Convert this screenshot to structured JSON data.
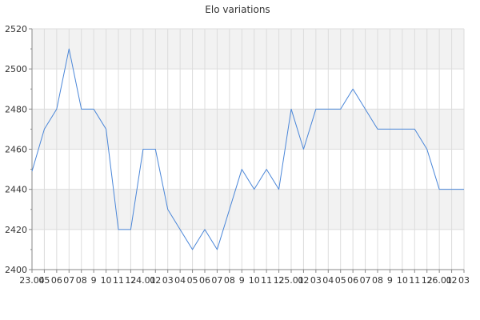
{
  "chart_data": {
    "type": "line",
    "title": "Elo variations",
    "xlabel": "",
    "ylabel": "",
    "ylim": [
      2400,
      2520
    ],
    "yticks": [
      2400,
      2420,
      2440,
      2460,
      2480,
      2500,
      2520
    ],
    "grid": true,
    "legend": "none",
    "colors": {
      "line": "#4a86d8",
      "band": "#f2f2f2",
      "grid": "#dcdcdc",
      "axis": "#888888",
      "text": "#333333"
    },
    "x": [
      "23.04",
      "05",
      "06",
      "07",
      "08",
      "9",
      "10",
      "11",
      "12",
      "24.01",
      "02",
      "03",
      "04",
      "05",
      "06",
      "07",
      "08",
      "9",
      "10",
      "11",
      "12",
      "25.01",
      "02",
      "03",
      "04",
      "05",
      "06",
      "07",
      "08",
      "9",
      "10",
      "11",
      "12",
      "26.01",
      "02",
      "03"
    ],
    "series": [
      {
        "name": "",
        "values": [
          2449,
          2470,
          2480,
          2510,
          2480,
          2480,
          2470,
          2420,
          2420,
          2460,
          2460,
          2430,
          2420,
          2410,
          2420,
          2410,
          2430,
          2450,
          2440,
          2450,
          2440,
          2480,
          2460,
          2480,
          2480,
          2480,
          2490,
          2480,
          2470,
          2470,
          2470,
          2470,
          2460,
          2440,
          2440,
          2440
        ]
      }
    ]
  }
}
